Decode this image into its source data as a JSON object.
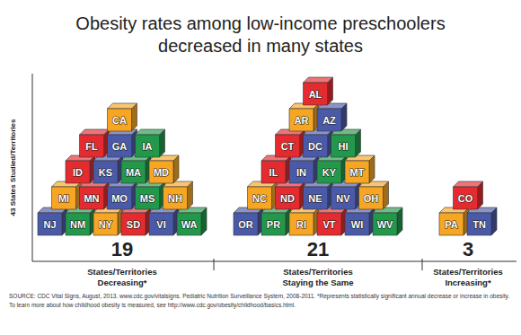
{
  "chart_data": {
    "type": "pictograph",
    "title": "Obesity rates among low-income preschoolers\ndecreased in many states",
    "ylabel": "43 States Studied/Territories",
    "categories": [
      "States/Territories\nDecreasing*",
      "States/Territories\nStaying the Same",
      "States/Territories\nIncreasing*"
    ],
    "values": [
      19,
      21,
      3
    ],
    "data_labels": true,
    "states": [
      [
        {
          "label": "CA",
          "color": "#f6a623"
        },
        {
          "label": "FL",
          "color": "#e42b2f"
        },
        {
          "label": "GA",
          "color": "#4b5aa8"
        },
        {
          "label": "IA",
          "color": "#21984a"
        },
        {
          "label": "ID",
          "color": "#e42b2f"
        },
        {
          "label": "KS",
          "color": "#4b5aa8"
        },
        {
          "label": "MA",
          "color": "#21984a"
        },
        {
          "label": "MD",
          "color": "#f6a623"
        },
        {
          "label": "MI",
          "color": "#f6a623"
        },
        {
          "label": "MN",
          "color": "#e42b2f"
        },
        {
          "label": "MO",
          "color": "#4b5aa8"
        },
        {
          "label": "MS",
          "color": "#21984a"
        },
        {
          "label": "NH",
          "color": "#f6a623"
        },
        {
          "label": "NJ",
          "color": "#4b5aa8"
        },
        {
          "label": "NM",
          "color": "#21984a"
        },
        {
          "label": "NY",
          "color": "#f6a623"
        },
        {
          "label": "SD",
          "color": "#e42b2f"
        },
        {
          "label": "VI",
          "color": "#4b5aa8"
        },
        {
          "label": "WA",
          "color": "#21984a"
        }
      ],
      [
        {
          "label": "AL",
          "color": "#e42b2f"
        },
        {
          "label": "AR",
          "color": "#f6a623"
        },
        {
          "label": "AZ",
          "color": "#4b5aa8"
        },
        {
          "label": "CT",
          "color": "#e42b2f"
        },
        {
          "label": "DC",
          "color": "#4b5aa8"
        },
        {
          "label": "HI",
          "color": "#21984a"
        },
        {
          "label": "IL",
          "color": "#e42b2f"
        },
        {
          "label": "IN",
          "color": "#4b5aa8"
        },
        {
          "label": "KY",
          "color": "#21984a"
        },
        {
          "label": "MT",
          "color": "#f6a623"
        },
        {
          "label": "NC",
          "color": "#f6a623"
        },
        {
          "label": "ND",
          "color": "#e42b2f"
        },
        {
          "label": "NE",
          "color": "#4b5aa8"
        },
        {
          "label": "NV",
          "color": "#4b5aa8"
        },
        {
          "label": "OH",
          "color": "#f6a623"
        },
        {
          "label": "OR",
          "color": "#4b5aa8"
        },
        {
          "label": "PR",
          "color": "#21984a"
        },
        {
          "label": "RI",
          "color": "#f6a623"
        },
        {
          "label": "VT",
          "color": "#e42b2f"
        },
        {
          "label": "WI",
          "color": "#4b5aa8"
        },
        {
          "label": "WV",
          "color": "#21984a"
        }
      ],
      [
        {
          "label": "CO",
          "color": "#e42b2f"
        },
        {
          "label": "PA",
          "color": "#f6a623"
        },
        {
          "label": "TN",
          "color": "#4b5aa8"
        }
      ]
    ],
    "notes": [
      "SOURCE: CDC Vital Signs, August, 2013. www.cdc.gov/vitalsigns. Pediatric Nutrition Surveillance System, 2008-2011. *Represents statistically significant annual decrease or increase in obesity.",
      "To learn more about how childhood obesity is measured, see http://www.cdc.gov/obesity/childhood/basics.html."
    ]
  }
}
